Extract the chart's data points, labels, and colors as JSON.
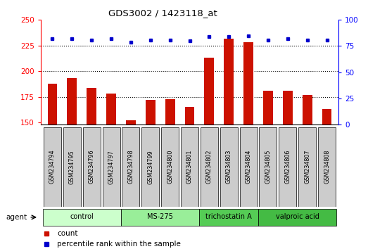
{
  "title": "GDS3002 / 1423118_at",
  "samples": [
    "GSM234794",
    "GSM234795",
    "GSM234796",
    "GSM234797",
    "GSM234798",
    "GSM234799",
    "GSM234800",
    "GSM234801",
    "GSM234802",
    "GSM234803",
    "GSM234804",
    "GSM234805",
    "GSM234806",
    "GSM234807",
    "GSM234808"
  ],
  "counts": [
    188,
    193,
    184,
    178,
    152,
    172,
    173,
    165,
    213,
    232,
    228,
    181,
    181,
    177,
    163
  ],
  "percentiles": [
    82,
    82,
    81,
    82,
    79,
    81,
    81,
    80,
    84,
    84,
    85,
    81,
    82,
    81,
    81
  ],
  "groups": [
    {
      "label": "control",
      "start": 0,
      "end": 4,
      "color": "#ccffcc"
    },
    {
      "label": "MS-275",
      "start": 4,
      "end": 8,
      "color": "#99ee99"
    },
    {
      "label": "trichostatin A",
      "start": 8,
      "end": 11,
      "color": "#55cc55"
    },
    {
      "label": "valproic acid",
      "start": 11,
      "end": 15,
      "color": "#44bb44"
    }
  ],
  "bar_color": "#cc1100",
  "dot_color": "#0000cc",
  "ylim_left": [
    148,
    250
  ],
  "ylim_right": [
    0,
    100
  ],
  "yticks_left": [
    150,
    175,
    200,
    225,
    250
  ],
  "yticks_right": [
    0,
    25,
    50,
    75,
    100
  ],
  "grid_values": [
    175,
    200,
    225
  ],
  "label_box_color": "#cccccc",
  "background_color": "#ffffff"
}
